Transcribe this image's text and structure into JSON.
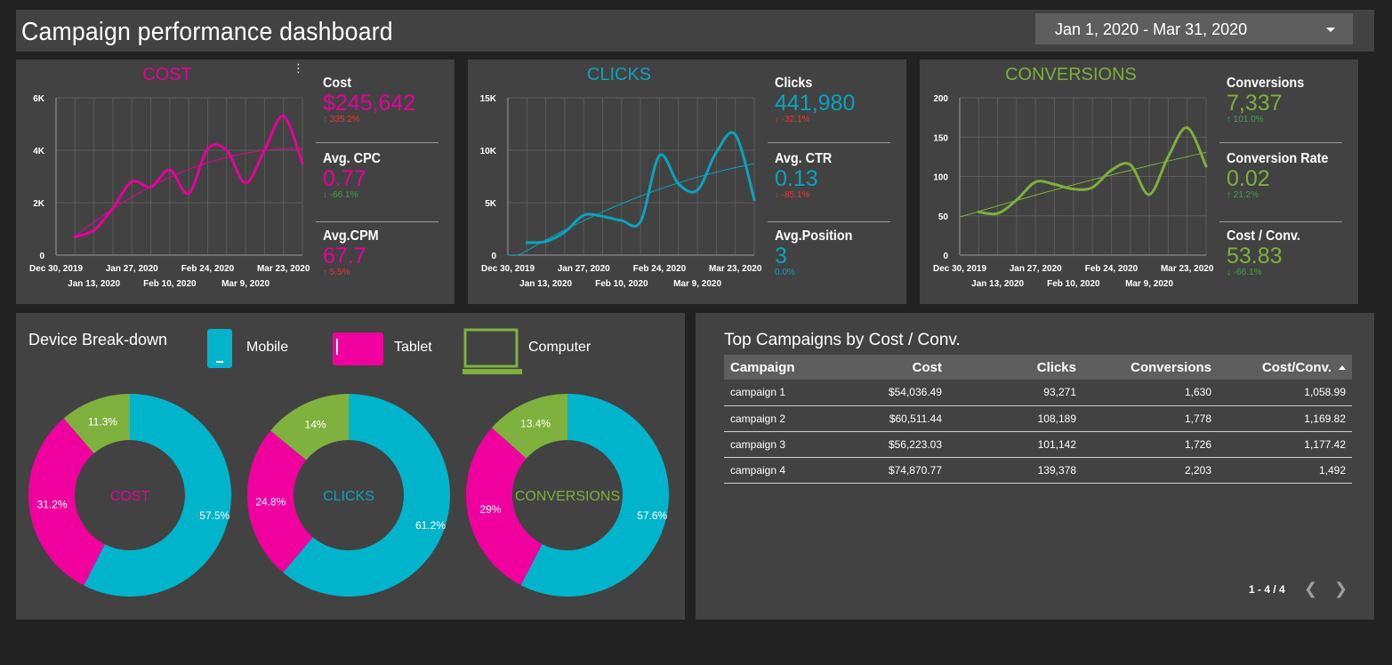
{
  "header": {
    "title": "Campaign performance dashboard",
    "date_range": "Jan 1, 2020 - Mar 31, 2020"
  },
  "colors": {
    "cost": "#e6009b",
    "clicks": "#0aa3bf",
    "conversions": "#7db03c",
    "mobile": "#00b4cc",
    "tablet": "#f0009e",
    "computer": "#7fb13e",
    "negative": "#e53935",
    "positive": "#43a047"
  },
  "kpi_panels": [
    {
      "title": "COST",
      "metrics": [
        {
          "label": "Cost",
          "value": "$245,642",
          "delta": "335.2%",
          "direction": "up"
        },
        {
          "label": "Avg. CPC",
          "value": "0.77",
          "delta": "-66.1%",
          "direction": "down"
        },
        {
          "label": "Avg.CPM",
          "value": "67.7",
          "delta": "5.5%",
          "direction": "up"
        }
      ]
    },
    {
      "title": "CLICKS",
      "metrics": [
        {
          "label": "Clicks",
          "value": "441,980",
          "delta": "-32.1%",
          "direction": "down"
        },
        {
          "label": "Avg. CTR",
          "value": "0.13",
          "delta": "-85.1%",
          "direction": "down"
        },
        {
          "label": "Avg.Position",
          "value": "3",
          "delta": "0.0%",
          "direction": "none"
        }
      ]
    },
    {
      "title": "CONVERSIONS",
      "metrics": [
        {
          "label": "Conversions",
          "value": "7,337",
          "delta": "101.0%",
          "direction": "up"
        },
        {
          "label": "Conversion Rate",
          "value": "0.02",
          "delta": "21.2%",
          "direction": "up"
        },
        {
          "label": "Cost / Conv.",
          "value": "53.83",
          "delta": "-66.1%",
          "direction": "down"
        }
      ]
    }
  ],
  "chart_data": [
    {
      "type": "line",
      "title": "COST",
      "x_tick_labels_row1": [
        "Dec 30, 2019",
        "Jan 27, 2020",
        "Feb 24, 2020",
        "Mar 23, 2020"
      ],
      "x_tick_labels_row2": [
        "Jan 13, 2020",
        "Feb 10, 2020",
        "Mar 9, 2020"
      ],
      "x": [
        "Dec 30, 2019",
        "Jan 6, 2020",
        "Jan 13, 2020",
        "Jan 20, 2020",
        "Jan 27, 2020",
        "Feb 3, 2020",
        "Feb 10, 2020",
        "Feb 17, 2020",
        "Feb 24, 2020",
        "Mar 2, 2020",
        "Mar 9, 2020",
        "Mar 16, 2020",
        "Mar 23, 2020",
        "Mar 30, 2020"
      ],
      "ylim": [
        0,
        6000
      ],
      "y_ticks": [
        "0",
        "2K",
        "4K",
        "6K"
      ],
      "series": [
        {
          "values": [
            null,
            700,
            950,
            1800,
            2800,
            2600,
            3250,
            2350,
            4050,
            4000,
            2750,
            4000,
            5300,
            3500
          ]
        }
      ],
      "trendline": true,
      "grid": true
    },
    {
      "type": "line",
      "title": "CLICKS",
      "x_tick_labels_row1": [
        "Dec 30, 2019",
        "Jan 27, 2020",
        "Feb 24, 2020",
        "Mar 23, 2020"
      ],
      "x_tick_labels_row2": [
        "Jan 13, 2020",
        "Feb 10, 2020",
        "Mar 9, 2020"
      ],
      "x": [
        "Dec 30, 2019",
        "Jan 6, 2020",
        "Jan 13, 2020",
        "Jan 20, 2020",
        "Jan 27, 2020",
        "Feb 3, 2020",
        "Feb 10, 2020",
        "Feb 17, 2020",
        "Feb 24, 2020",
        "Mar 2, 2020",
        "Mar 9, 2020",
        "Mar 16, 2020",
        "Mar 23, 2020",
        "Mar 30, 2020"
      ],
      "ylim": [
        0,
        15000
      ],
      "y_ticks": [
        "0",
        "5K",
        "10K",
        "15K"
      ],
      "series": [
        {
          "values": [
            null,
            1200,
            1300,
            2200,
            3800,
            3700,
            3300,
            3200,
            9500,
            6800,
            6200,
            9800,
            11500,
            5300
          ]
        }
      ],
      "trendline": true,
      "grid": true
    },
    {
      "type": "line",
      "title": "CONVERSIONS",
      "x_tick_labels_row1": [
        "Dec 30, 2019",
        "Jan 27, 2020",
        "Feb 24, 2020",
        "Mar 23, 2020"
      ],
      "x_tick_labels_row2": [
        "Jan 13, 2020",
        "Feb 10, 2020",
        "Mar 9, 2020"
      ],
      "x": [
        "Dec 30, 2019",
        "Jan 6, 2020",
        "Jan 13, 2020",
        "Jan 20, 2020",
        "Jan 27, 2020",
        "Feb 3, 2020",
        "Feb 10, 2020",
        "Feb 17, 2020",
        "Feb 24, 2020",
        "Mar 2, 2020",
        "Mar 9, 2020",
        "Mar 16, 2020",
        "Mar 23, 2020",
        "Mar 30, 2020"
      ],
      "ylim": [
        0,
        200
      ],
      "y_ticks": [
        "0",
        "50",
        "100",
        "150",
        "200"
      ],
      "series": [
        {
          "values": [
            null,
            55,
            53,
            70,
            93,
            90,
            84,
            86,
            108,
            115,
            77,
            125,
            162,
            113
          ]
        }
      ],
      "trendline": true,
      "grid": true
    },
    {
      "type": "pie",
      "center_label": "COST",
      "categories": [
        "Mobile",
        "Tablet",
        "Computer"
      ],
      "values": [
        57.5,
        31.2,
        11.3
      ],
      "labels": [
        "57.5%",
        "31.2%",
        "11.3%"
      ]
    },
    {
      "type": "pie",
      "center_label": "CLICKS",
      "categories": [
        "Mobile",
        "Tablet",
        "Computer"
      ],
      "values": [
        61.2,
        24.8,
        14
      ],
      "labels": [
        "61.2%",
        "24.8%",
        "14%"
      ]
    },
    {
      "type": "pie",
      "center_label": "CONVERSIONS",
      "categories": [
        "Mobile",
        "Tablet",
        "Computer"
      ],
      "values": [
        57.6,
        29,
        13.4
      ],
      "labels": [
        "57.6%",
        "29%",
        "13.4%"
      ]
    }
  ],
  "device_breakdown": {
    "title": "Device Break-down",
    "legend": [
      {
        "label": "Mobile",
        "icon": "mobile-icon"
      },
      {
        "label": "Tablet",
        "icon": "tablet-icon"
      },
      {
        "label": "Computer",
        "icon": "computer-icon"
      }
    ]
  },
  "campaign_table": {
    "title": "Top Campaigns by Cost / Conv.",
    "columns": [
      "Campaign",
      "Cost",
      "Clicks",
      "Conversions",
      "Cost/Conv."
    ],
    "sort": {
      "column": "Cost/Conv.",
      "direction": "ascending"
    },
    "rows": [
      [
        "campaign 1",
        "$54,036.49",
        "93,271",
        "1,630",
        "1,058.99"
      ],
      [
        "campaign 2",
        "$60,511.44",
        "108,189",
        "1,778",
        "1,169.82"
      ],
      [
        "campaign 3",
        "$56,223.03",
        "101,142",
        "1,726",
        "1,177.42"
      ],
      [
        "campaign 4",
        "$74,870.77",
        "139,378",
        "2,203",
        "1,492"
      ]
    ],
    "pagination": "1 - 4 / 4"
  }
}
